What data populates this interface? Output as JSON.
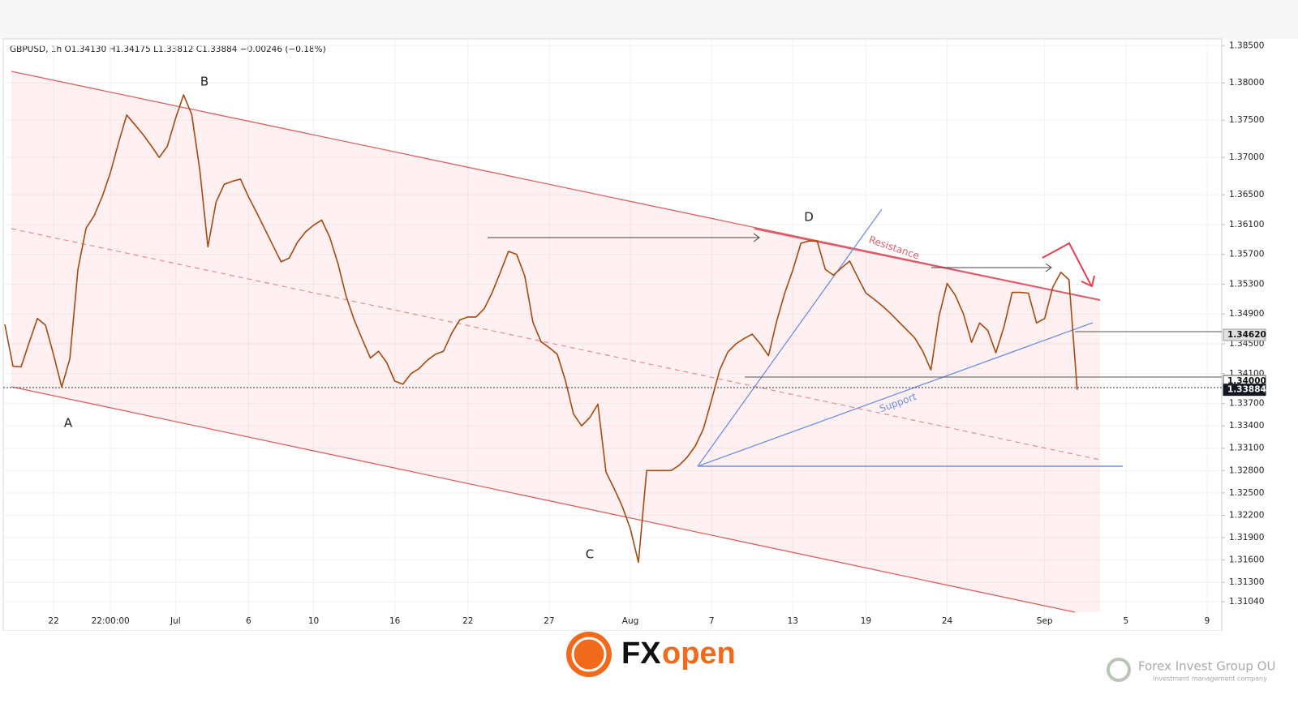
{
  "chart_data": {
    "type": "line",
    "title": "GBPUSD, 1h  O1.34130  H1.34175  L1.33812  C1.33884  −0.00246 (−0.18%)",
    "categories": [
      null,
      null,
      null,
      null,
      null,
      null,
      "22",
      null,
      null,
      null,
      null,
      null,
      null,
      "22:00:00",
      null,
      null,
      null,
      null,
      null,
      null,
      null,
      "Jul",
      null,
      null,
      null,
      null,
      null,
      null,
      null,
      null,
      "6",
      null,
      null,
      null,
      null,
      null,
      null,
      null,
      "10",
      null,
      null,
      null,
      null,
      null,
      null,
      null,
      null,
      null,
      "16",
      null,
      null,
      null,
      null,
      null,
      null,
      null,
      null,
      "22",
      null,
      null,
      null,
      null,
      null,
      null,
      null,
      null,
      null,
      "27",
      null,
      null,
      null,
      null,
      null,
      null,
      null,
      null,
      null,
      "Aug",
      null,
      null,
      null,
      null,
      null,
      null,
      null,
      null,
      null,
      "7",
      null,
      null,
      null,
      null,
      null,
      null,
      null,
      null,
      null,
      "13",
      null,
      null,
      null,
      null,
      null,
      null,
      null,
      null,
      "19",
      null,
      null,
      null,
      null,
      null,
      null,
      null,
      null,
      null,
      "24",
      null,
      null,
      null,
      null,
      null,
      null,
      null,
      null,
      null,
      null,
      null,
      "Sep",
      null,
      null,
      null,
      null,
      null,
      null,
      null,
      null,
      null,
      "5",
      null,
      null,
      null,
      null,
      null,
      null,
      null,
      null,
      null,
      "9",
      null
    ],
    "series": [
      {
        "color": "#a8480e",
        "values": [
          1.3476,
          1.342,
          1.3419,
          1.3452,
          1.3484,
          1.3475,
          1.3435,
          1.3392,
          1.343,
          1.355,
          1.3605,
          1.3622,
          1.3648,
          1.368,
          1.372,
          1.3757,
          1.3744,
          1.3731,
          1.3716,
          1.37,
          1.3715,
          1.3752,
          1.3784,
          1.3758,
          1.3683,
          1.358,
          1.364,
          1.3664,
          1.3668,
          1.3671,
          1.3647,
          1.3626,
          1.3604,
          1.3582,
          1.356,
          1.3565,
          1.3586,
          1.36,
          1.3609,
          1.3616,
          1.3593,
          1.3558,
          1.3514,
          1.3482,
          1.3456,
          1.3431,
          1.344,
          1.3425,
          1.34,
          1.3396,
          1.341,
          1.3417,
          1.3428,
          1.3436,
          1.344,
          1.3464,
          1.3482,
          1.3486,
          1.3486,
          1.3497,
          1.3519,
          1.3546,
          1.3574,
          1.357,
          1.3541,
          1.3479,
          1.3453,
          1.3445,
          1.3436,
          1.3401,
          1.3356,
          1.334,
          1.3351,
          1.3369,
          1.3278,
          1.3256,
          1.3232,
          1.3202,
          1.3157,
          1.328,
          1.328,
          1.328,
          1.328,
          1.3287,
          1.3298,
          1.3313,
          1.3336,
          1.3375,
          1.3415,
          1.3439,
          1.345,
          1.3457,
          1.3463,
          1.345,
          1.3434,
          1.348,
          1.3518,
          1.3549,
          1.3585,
          1.3588,
          1.3588,
          1.355,
          1.3542,
          1.3552,
          1.3561,
          1.3539,
          1.3518,
          1.351,
          1.3501,
          1.3491,
          1.348,
          1.3469,
          1.3458,
          1.344,
          1.3415,
          1.3487,
          1.3531,
          1.3515,
          1.349,
          1.3452,
          1.3478,
          1.3468,
          1.3438,
          1.3473,
          1.3519,
          1.3519,
          1.3518,
          1.3478,
          1.3484,
          1.3526,
          1.3546,
          1.3536,
          1.33884,
          null,
          null,
          null,
          null,
          null,
          null,
          null,
          null,
          null,
          null,
          null,
          null,
          null,
          null,
          null,
          null,
          null
        ]
      }
    ],
    "ylim": [
      1.309,
      1.3859
    ],
    "yticks": [
      {
        "value": 1.385,
        "label": "1.38500"
      },
      {
        "value": 1.38,
        "label": "1.38000"
      },
      {
        "value": 1.375,
        "label": "1.37500"
      },
      {
        "value": 1.37,
        "label": "1.37000"
      },
      {
        "value": 1.365,
        "label": "1.36500"
      },
      {
        "value": 1.361,
        "label": "1.36100"
      },
      {
        "value": 1.357,
        "label": "1.35700"
      },
      {
        "value": 1.353,
        "label": "1.35300"
      },
      {
        "value": 1.349,
        "label": "1.34900"
      },
      {
        "value": 1.345,
        "label": "1.34500"
      },
      {
        "value": 1.341,
        "label": "1.34100"
      },
      {
        "value": 1.337,
        "label": "1.33700"
      },
      {
        "value": 1.334,
        "label": "1.33400"
      },
      {
        "value": 1.331,
        "label": "1.33100"
      },
      {
        "value": 1.328,
        "label": "1.32800"
      },
      {
        "value": 1.325,
        "label": "1.32500"
      },
      {
        "value": 1.322,
        "label": "1.32200"
      },
      {
        "value": 1.319,
        "label": "1.31900"
      },
      {
        "value": 1.316,
        "label": "1.31600"
      },
      {
        "value": 1.313,
        "label": "1.31300"
      },
      {
        "value": 1.3104,
        "label": "1.31040"
      }
    ],
    "grid": true,
    "price_labels": [
      {
        "value": 1.3462,
        "label": "1.34620"
      },
      {
        "value": 1.34,
        "label": "1.34000"
      },
      {
        "value": 1.33884,
        "label": "1.33884"
      }
    ],
    "annotations": [
      "A",
      "B",
      "C",
      "D",
      "Resistance",
      "Support"
    ]
  },
  "footer": {
    "logo": [
      "FX",
      "open"
    ],
    "company": "Forex Invest Group OU",
    "tagline": "Investment management company"
  }
}
